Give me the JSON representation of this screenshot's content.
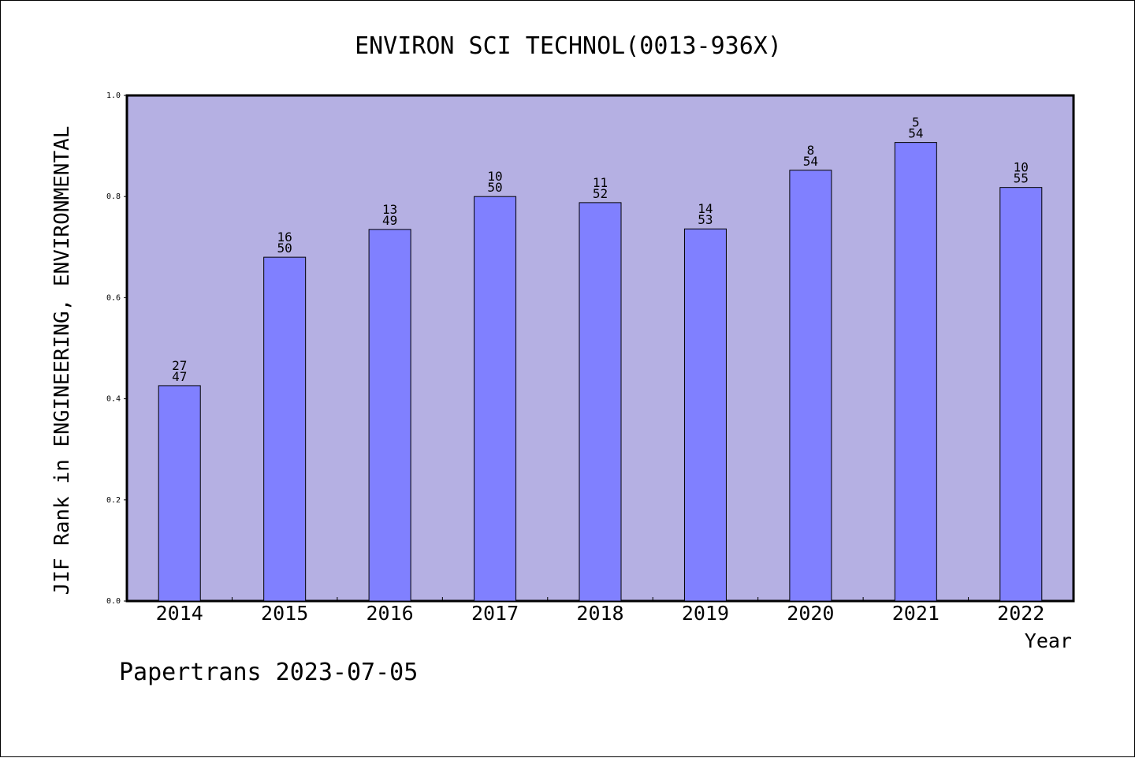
{
  "footer": "Papertrans 2023-07-05",
  "chart_data": {
    "type": "bar",
    "title": "ENVIRON SCI TECHNOL(0013-936X)",
    "xlabel": "Year",
    "ylabel": "JIF Rank in ENGINEERING, ENVIRONMENTAL",
    "ylim": [
      0,
      1.0
    ],
    "yticks": [
      "0.0",
      "0.2",
      "0.4",
      "0.6",
      "0.8",
      "1.0"
    ],
    "grid": false,
    "legend": "none",
    "categories": [
      "2014",
      "2015",
      "2016",
      "2017",
      "2018",
      "2019",
      "2020",
      "2021",
      "2022"
    ],
    "values": [
      0.426,
      0.68,
      0.735,
      0.8,
      0.788,
      0.736,
      0.852,
      0.907,
      0.818
    ],
    "rank": [
      "27",
      "16",
      "13",
      "10",
      "11",
      "14",
      "8",
      "5",
      "10"
    ],
    "total": [
      "47",
      "50",
      "49",
      "50",
      "52",
      "53",
      "54",
      "54",
      "55"
    ],
    "colors": {
      "plot_bg": "#b5b0e3",
      "bar": "#8080ff",
      "axis": "#000000"
    }
  }
}
